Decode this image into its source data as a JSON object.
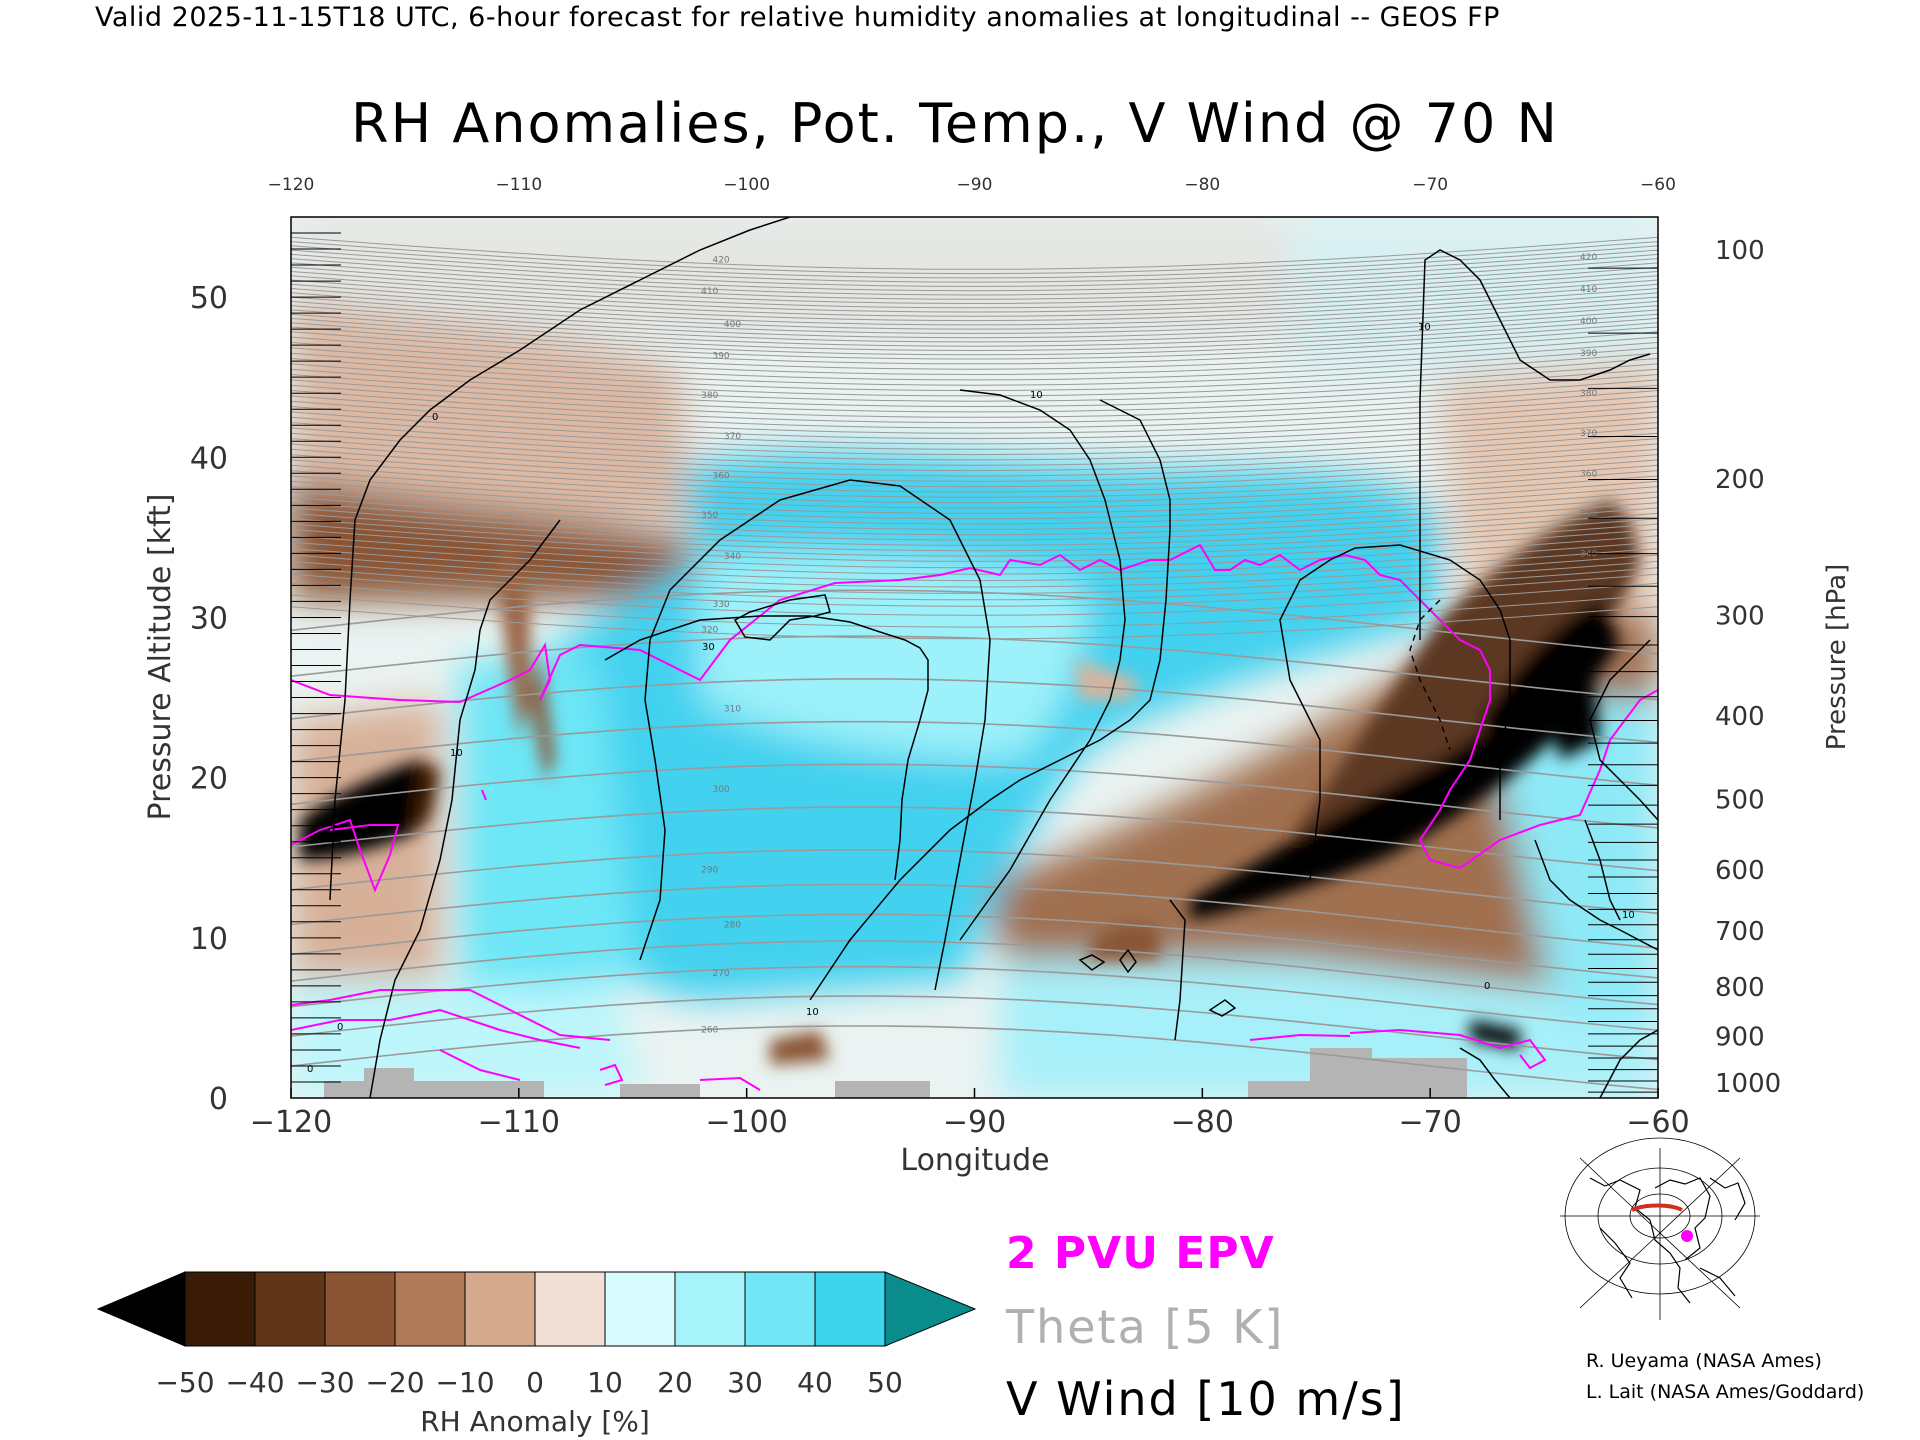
{
  "header": {
    "valid_line": "Valid 2025-11-15T18 UTC, 6-hour forecast for relative humidity anomalies at longitudinal -- GEOS FP",
    "title": "RH Anomalies, Pot. Temp., V Wind @ 70 N"
  },
  "legend": {
    "epv": "2 PVU EPV",
    "theta": "Theta [5 K]",
    "vwind": "V Wind [10 m/s]",
    "epv_color": "#ff00ff",
    "theta_color": "#b0b0b0",
    "vwind_color": "#000000"
  },
  "credits": {
    "line1": "R. Ueyama (NASA Ames)",
    "line2": "L. Lait (NASA Ames/Goddard)"
  },
  "inset_map": {
    "icon": "north-polar-map-icon",
    "marker_color": "#ff00ff",
    "section_color": "#d03020"
  },
  "chart_data": {
    "type": "heatmap",
    "title": "RH Anomalies, Pot. Temp., V Wind @ 70 N",
    "xlabel": "Longitude",
    "ylabel": "Pressure Altitude [kft]",
    "y2label": "Pressure [hPa]",
    "xlim": [
      -120,
      -60
    ],
    "ylim": [
      0,
      55
    ],
    "x_ticks": [
      -120,
      -110,
      -100,
      -90,
      -80,
      -70,
      -60
    ],
    "x_tick_labels": [
      "−120",
      "−110",
      "−100",
      "−90",
      "−80",
      "−70",
      "−60"
    ],
    "y_ticks": [
      0,
      10,
      20,
      30,
      40,
      50
    ],
    "y_tick_labels": [
      "0",
      "10",
      "20",
      "30",
      "40",
      "50"
    ],
    "top_ticks": [
      -120,
      -110,
      -100,
      -90,
      -80,
      -70,
      -60
    ],
    "top_tick_labels": [
      "−120",
      "−110",
      "−100",
      "−90",
      "−80",
      "−70",
      "−60"
    ],
    "pressure_ticks": [
      {
        "hpa": 100,
        "kft": 53.0,
        "label": "100"
      },
      {
        "hpa": 200,
        "kft": 38.7,
        "label": "200"
      },
      {
        "hpa": 300,
        "kft": 30.2,
        "label": "300"
      },
      {
        "hpa": 400,
        "kft": 23.9,
        "label": "400"
      },
      {
        "hpa": 500,
        "kft": 18.7,
        "label": "500"
      },
      {
        "hpa": 600,
        "kft": 14.3,
        "label": "600"
      },
      {
        "hpa": 700,
        "kft": 10.5,
        "label": "700"
      },
      {
        "hpa": 800,
        "kft": 7.0,
        "label": "800"
      },
      {
        "hpa": 900,
        "kft": 3.9,
        "label": "900"
      },
      {
        "hpa": 1000,
        "kft": 1.0,
        "label": "1000"
      }
    ],
    "colorbar": {
      "label": "RH Anomaly [%]",
      "ticks": [
        -50,
        -40,
        -30,
        -20,
        -10,
        0,
        10,
        20,
        30,
        40,
        50
      ],
      "tick_labels": [
        "−50",
        "−40",
        "−30",
        "−20",
        "−10",
        "0",
        "10",
        "20",
        "30",
        "40",
        "50"
      ],
      "colors": [
        "#000000",
        "#3a1c06",
        "#60351a",
        "#8a5534",
        "#b07a58",
        "#d4a98d",
        "#f1e0d6",
        "#d8fbfd",
        "#a6f3fa",
        "#72e6f6",
        "#3fd4ee",
        "#1ab9dd",
        "#0896b8",
        "#0a8c8c"
      ]
    },
    "theta_labels": [
      "260",
      "270",
      "280",
      "290",
      "300",
      "310",
      "320",
      "330",
      "340",
      "350",
      "360",
      "370",
      "380",
      "390",
      "400",
      "410",
      "420"
    ],
    "vwind_labels": [
      "0",
      "10",
      "30"
    ]
  }
}
